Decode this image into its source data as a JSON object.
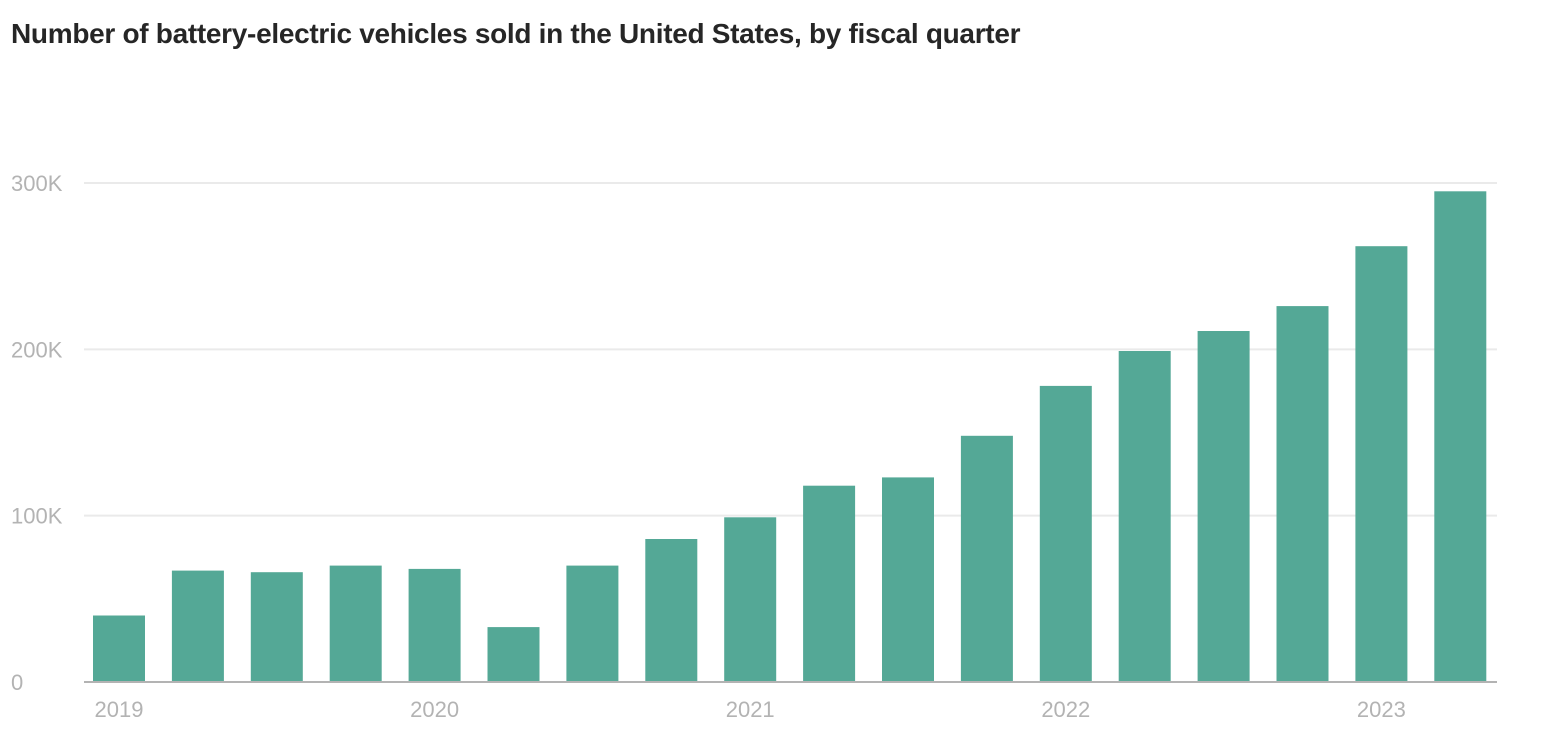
{
  "chart_data": {
    "type": "bar",
    "title": "Number of battery-electric vehicles sold in the United States, by fiscal quarter",
    "xlabel": "",
    "ylabel": "",
    "categories": [
      "2019 Q1",
      "2019 Q2",
      "2019 Q3",
      "2019 Q4",
      "2020 Q1",
      "2020 Q2",
      "2020 Q3",
      "2020 Q4",
      "2021 Q1",
      "2021 Q2",
      "2021 Q3",
      "2021 Q4",
      "2022 Q1",
      "2022 Q2",
      "2022 Q3",
      "2022 Q4",
      "2023 Q1",
      "2023 Q2"
    ],
    "values": [
      40000,
      67000,
      66000,
      70000,
      68000,
      33000,
      70000,
      86000,
      99000,
      118000,
      123000,
      148000,
      178000,
      199000,
      211000,
      226000,
      262000,
      295000
    ],
    "x_tick_labels": [
      {
        "label": "2019",
        "category_index": 0
      },
      {
        "label": "2020",
        "category_index": 4
      },
      {
        "label": "2021",
        "category_index": 8
      },
      {
        "label": "2022",
        "category_index": 12
      },
      {
        "label": "2023",
        "category_index": 16
      }
    ],
    "y_ticks": [
      {
        "value": 0,
        "label": "0"
      },
      {
        "value": 100000,
        "label": "100K"
      },
      {
        "value": 200000,
        "label": "200K"
      },
      {
        "value": 300000,
        "label": "300K"
      }
    ],
    "ylim": [
      0,
      300000
    ],
    "grid": true,
    "bar_color": "#54a896",
    "grid_color": "#eaeaea",
    "axis_color": "#b3b3b3"
  }
}
